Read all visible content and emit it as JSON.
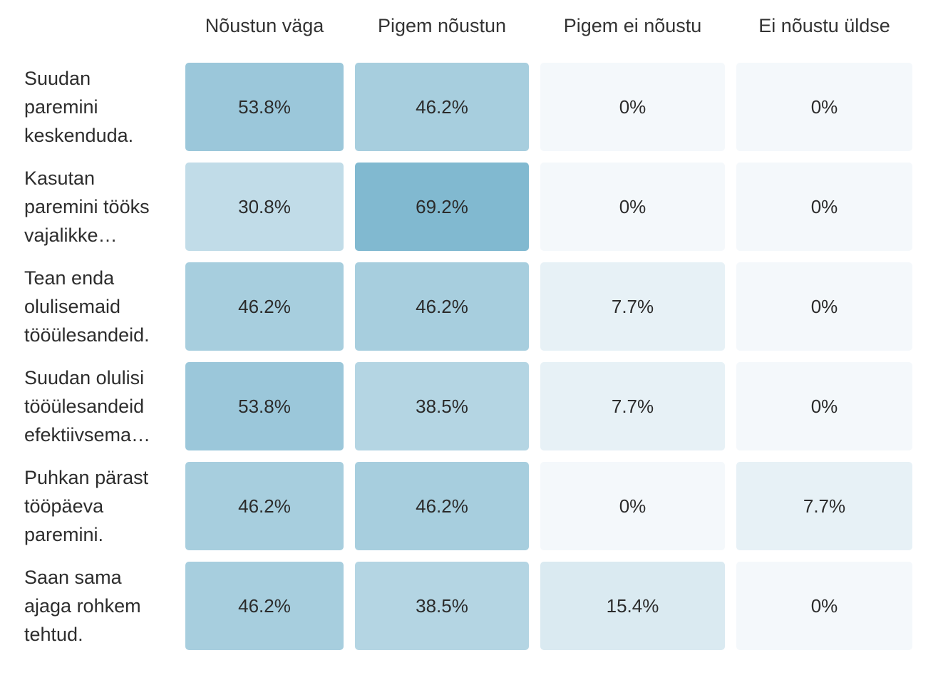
{
  "chart_data": {
    "type": "heatmap",
    "columns": [
      "Nõustun väga",
      "Pigem nõustun",
      "Pigem ei nõustu",
      "Ei nõustu üldse"
    ],
    "rows": [
      {
        "label_lines": [
          "Suudan",
          "paremini",
          "keskenduda."
        ],
        "values": [
          53.8,
          46.2,
          0,
          0
        ],
        "display": [
          "53.8%",
          "46.2%",
          "0%",
          "0%"
        ]
      },
      {
        "label_lines": [
          "Kasutan",
          "paremini tööks",
          "vajalikke…"
        ],
        "values": [
          30.8,
          69.2,
          0,
          0
        ],
        "display": [
          "30.8%",
          "69.2%",
          "0%",
          "0%"
        ]
      },
      {
        "label_lines": [
          "Tean enda",
          "olulisemaid",
          "tööülesandeid."
        ],
        "values": [
          46.2,
          46.2,
          7.7,
          0
        ],
        "display": [
          "46.2%",
          "46.2%",
          "7.7%",
          "0%"
        ]
      },
      {
        "label_lines": [
          "Suudan olulisi",
          "tööülesandeid",
          "efektiivsema…"
        ],
        "values": [
          53.8,
          38.5,
          7.7,
          0
        ],
        "display": [
          "53.8%",
          "38.5%",
          "7.7%",
          "0%"
        ]
      },
      {
        "label_lines": [
          "Puhkan pärast",
          "tööpäeva",
          "paremini."
        ],
        "values": [
          46.2,
          46.2,
          0,
          7.7
        ],
        "display": [
          "46.2%",
          "46.2%",
          "0%",
          "7.7%"
        ]
      },
      {
        "label_lines": [
          "Saan sama",
          "ajaga rohkem",
          "tehtud."
        ],
        "values": [
          46.2,
          38.5,
          15.4,
          0
        ],
        "display": [
          "46.2%",
          "38.5%",
          "15.4%",
          "0%"
        ]
      }
    ],
    "value_unit": "%",
    "value_range": [
      0,
      69.2
    ],
    "colors": {
      "low": "#f4f8fb",
      "high": "#81b9d0"
    },
    "legend": "none",
    "grid": false
  }
}
